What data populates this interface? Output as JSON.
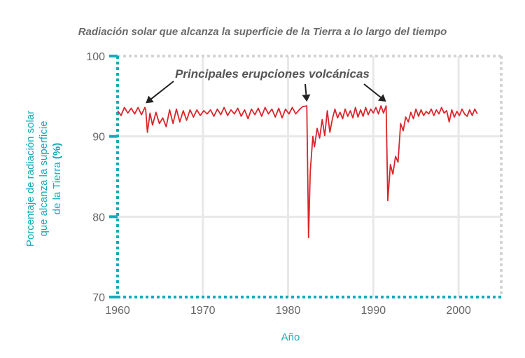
{
  "chart_data": {
    "type": "line",
    "title": "Radiación solar que alcanza la superficie de la Tierra a lo largo del tiempo",
    "xlabel": "Año",
    "ylabel": {
      "line1": "Porcentaje de radiación solar",
      "line2": "que alcanza la superficie",
      "line3_prefix": "de la Tierra ",
      "line3_unit": "(%)"
    },
    "xlim": [
      1960,
      2005
    ],
    "ylim": [
      70,
      100
    ],
    "x_ticks": [
      1960,
      1970,
      1980,
      1990,
      2000
    ],
    "y_ticks": [
      70,
      80,
      90,
      100
    ],
    "grid": true,
    "annotation": {
      "text": "Principales erupciones volcánicas",
      "arrow_targets": [
        {
          "x": 1963.3,
          "y": 93.6
        },
        {
          "x": 1982.2,
          "y": 93.8
        },
        {
          "x": 1991.5,
          "y": 93.8
        }
      ]
    },
    "colors": {
      "line": "#d9262c",
      "axis_accent": "#17a9b8",
      "grid": "#e8e8e8",
      "frame": "#d4d4d4",
      "title": "#6a6a6a"
    },
    "series": [
      {
        "x": [
          1960.0,
          1960.4,
          1960.8,
          1961.2,
          1961.6,
          1962.0,
          1962.4,
          1962.8,
          1963.2,
          1963.3,
          1963.5,
          1963.8,
          1964.1,
          1964.5,
          1964.9,
          1965.3,
          1965.7,
          1966.1,
          1966.5,
          1966.9,
          1967.3,
          1967.7,
          1968.1,
          1968.5,
          1968.9,
          1969.3,
          1969.7,
          1970.1,
          1970.5,
          1970.9,
          1971.3,
          1971.7,
          1972.1,
          1972.5,
          1972.9,
          1973.3,
          1973.7,
          1974.1,
          1974.5,
          1974.9,
          1975.3,
          1975.7,
          1976.1,
          1976.5,
          1976.9,
          1977.3,
          1977.7,
          1978.1,
          1978.5,
          1978.9,
          1979.3,
          1979.7,
          1980.1,
          1980.5,
          1980.9,
          1981.3,
          1981.7,
          1982.2,
          1982.4,
          1982.6,
          1982.9,
          1983.1,
          1983.4,
          1983.7,
          1984.0,
          1984.3,
          1984.6,
          1984.9,
          1985.2,
          1985.5,
          1985.8,
          1986.1,
          1986.4,
          1986.7,
          1987.0,
          1987.3,
          1987.6,
          1987.9,
          1988.2,
          1988.5,
          1988.8,
          1989.1,
          1989.4,
          1989.7,
          1990.0,
          1990.3,
          1990.6,
          1990.9,
          1991.2,
          1991.5,
          1991.7,
          1992.0,
          1992.3,
          1992.6,
          1992.9,
          1993.2,
          1993.5,
          1993.8,
          1994.1,
          1994.4,
          1994.7,
          1995.0,
          1995.3,
          1995.6,
          1995.9,
          1996.2,
          1996.5,
          1996.8,
          1997.1,
          1997.4,
          1997.7,
          1998.0,
          1998.3,
          1998.6,
          1998.9,
          1999.2,
          1999.5,
          1999.8,
          2000.1,
          2000.4,
          2000.7,
          2001.0,
          2001.3,
          2001.6,
          2001.9,
          2002.2
        ],
        "y": [
          93.2,
          92.6,
          93.6,
          92.9,
          93.5,
          92.8,
          93.6,
          92.7,
          93.6,
          93.3,
          90.5,
          92.9,
          91.4,
          93.0,
          91.6,
          92.3,
          91.2,
          93.3,
          91.6,
          93.4,
          91.8,
          93.2,
          92.0,
          93.3,
          92.4,
          93.3,
          92.6,
          93.2,
          92.8,
          93.3,
          92.5,
          93.4,
          92.7,
          93.6,
          92.6,
          93.3,
          92.8,
          93.5,
          92.5,
          93.3,
          92.2,
          93.4,
          92.7,
          93.5,
          92.5,
          93.6,
          92.8,
          93.4,
          92.4,
          93.5,
          92.3,
          93.4,
          92.8,
          93.6,
          92.8,
          93.3,
          93.7,
          93.8,
          77.4,
          85.6,
          90.0,
          88.7,
          91.0,
          89.8,
          92.1,
          90.1,
          93.2,
          90.5,
          92.2,
          93.4,
          92.3,
          93.0,
          92.2,
          93.4,
          92.5,
          93.2,
          92.3,
          93.6,
          92.4,
          93.3,
          92.5,
          93.6,
          92.7,
          93.4,
          92.9,
          93.6,
          92.8,
          93.8,
          92.9,
          93.8,
          82.0,
          86.5,
          85.3,
          87.5,
          86.8,
          91.6,
          90.7,
          92.4,
          91.8,
          93.0,
          92.2,
          93.4,
          92.5,
          93.3,
          92.6,
          93.1,
          92.8,
          93.4,
          92.6,
          93.3,
          92.8,
          93.6,
          92.9,
          93.2,
          91.8,
          93.3,
          92.4,
          93.1,
          92.6,
          93.4,
          92.8,
          92.5,
          93.3,
          92.6,
          93.4,
          92.8
        ]
      }
    ]
  }
}
